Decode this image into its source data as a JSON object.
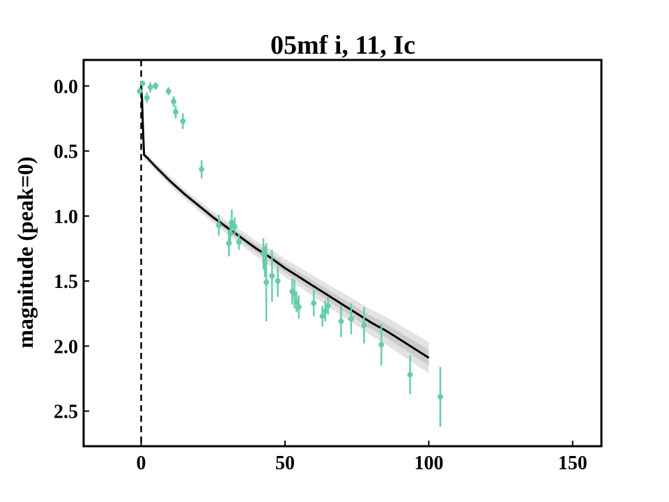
{
  "chart_data": {
    "type": "scatter",
    "title": "05mf i, 11, Ic",
    "xlabel": "",
    "ylabel": "magnitude (peak=0)",
    "xlim": [
      -20,
      160
    ],
    "ylim": [
      2.77,
      -0.2
    ],
    "y_inverted": true,
    "xticks": [
      0,
      50,
      100,
      150
    ],
    "yticks": [
      0.0,
      0.5,
      1.0,
      1.5,
      2.0,
      2.5
    ],
    "xtick_labels": [
      "0",
      "50",
      "100",
      "150"
    ],
    "ytick_labels": [
      "0.0",
      "0.5",
      "1.0",
      "1.5",
      "2.0",
      "2.5"
    ],
    "grid": false,
    "vline_x": 0,
    "colors": {
      "points": "#66cdaa",
      "model": "#000000",
      "band": "#b0b0b0"
    },
    "observations": [
      {
        "x": -0.5,
        "y": 0.04,
        "err": 0.03
      },
      {
        "x": 0.5,
        "y": -0.02,
        "err": 0.02
      },
      {
        "x": 2.0,
        "y": 0.09,
        "err": 0.04
      },
      {
        "x": 3.2,
        "y": 0.01,
        "err": 0.04
      },
      {
        "x": 5.0,
        "y": 0.0,
        "err": 0.03
      },
      {
        "x": 9.5,
        "y": 0.04,
        "err": 0.03
      },
      {
        "x": 11.3,
        "y": 0.12,
        "err": 0.04
      },
      {
        "x": 12.0,
        "y": 0.2,
        "err": 0.05
      },
      {
        "x": 14.5,
        "y": 0.27,
        "err": 0.06
      },
      {
        "x": 21.0,
        "y": 0.64,
        "err": 0.07
      },
      {
        "x": 27.0,
        "y": 1.07,
        "err": 0.08
      },
      {
        "x": 30.5,
        "y": 1.21,
        "err": 0.1
      },
      {
        "x": 31.0,
        "y": 1.13,
        "err": 0.08
      },
      {
        "x": 31.5,
        "y": 1.05,
        "err": 0.1
      },
      {
        "x": 32.5,
        "y": 1.08,
        "err": 0.07
      },
      {
        "x": 34.0,
        "y": 1.2,
        "err": 0.06
      },
      {
        "x": 42.5,
        "y": 1.29,
        "err": 0.12
      },
      {
        "x": 43.0,
        "y": 1.35,
        "err": 0.12
      },
      {
        "x": 43.5,
        "y": 1.51,
        "err": 0.3
      },
      {
        "x": 45.5,
        "y": 1.46,
        "err": 0.2
      },
      {
        "x": 47.5,
        "y": 1.5,
        "err": 0.12
      },
      {
        "x": 52.5,
        "y": 1.58,
        "err": 0.1
      },
      {
        "x": 53.3,
        "y": 1.6,
        "err": 0.11
      },
      {
        "x": 54.0,
        "y": 1.66,
        "err": 0.08
      },
      {
        "x": 54.8,
        "y": 1.7,
        "err": 0.09
      },
      {
        "x": 60.0,
        "y": 1.67,
        "err": 0.1
      },
      {
        "x": 63.0,
        "y": 1.77,
        "err": 0.08
      },
      {
        "x": 64.0,
        "y": 1.73,
        "err": 0.08
      },
      {
        "x": 65.0,
        "y": 1.69,
        "err": 0.07
      },
      {
        "x": 69.5,
        "y": 1.81,
        "err": 0.12
      },
      {
        "x": 73.0,
        "y": 1.79,
        "err": 0.12
      },
      {
        "x": 77.5,
        "y": 1.84,
        "err": 0.14
      },
      {
        "x": 83.5,
        "y": 1.99,
        "err": 0.16
      },
      {
        "x": 93.5,
        "y": 2.22,
        "err": 0.15
      },
      {
        "x": 104.0,
        "y": 2.39,
        "err": 0.23
      }
    ],
    "model_curve": {
      "x": [
        0,
        0.3,
        0.6,
        1,
        2,
        5,
        10,
        15,
        20,
        25,
        30,
        35,
        40,
        45,
        50,
        55,
        60,
        65,
        70,
        75,
        80,
        85,
        90,
        95,
        100
      ],
      "y": [
        0.0,
        0.1,
        0.3,
        0.53,
        0.55,
        0.62,
        0.73,
        0.83,
        0.92,
        1.01,
        1.09,
        1.17,
        1.25,
        1.32,
        1.4,
        1.47,
        1.54,
        1.61,
        1.68,
        1.75,
        1.82,
        1.88,
        1.95,
        2.02,
        2.09
      ],
      "band_outer": [
        0.01,
        0.02,
        0.03,
        0.03,
        0.03,
        0.03,
        0.035,
        0.035,
        0.04,
        0.045,
        0.05,
        0.055,
        0.06,
        0.065,
        0.07,
        0.075,
        0.08,
        0.085,
        0.09,
        0.095,
        0.1,
        0.105,
        0.11,
        0.115,
        0.12
      ],
      "band_inner": [
        0.005,
        0.01,
        0.015,
        0.015,
        0.015,
        0.015,
        0.017,
        0.018,
        0.02,
        0.022,
        0.025,
        0.027,
        0.03,
        0.032,
        0.035,
        0.037,
        0.04,
        0.042,
        0.045,
        0.047,
        0.05,
        0.052,
        0.055,
        0.057,
        0.06
      ]
    }
  }
}
